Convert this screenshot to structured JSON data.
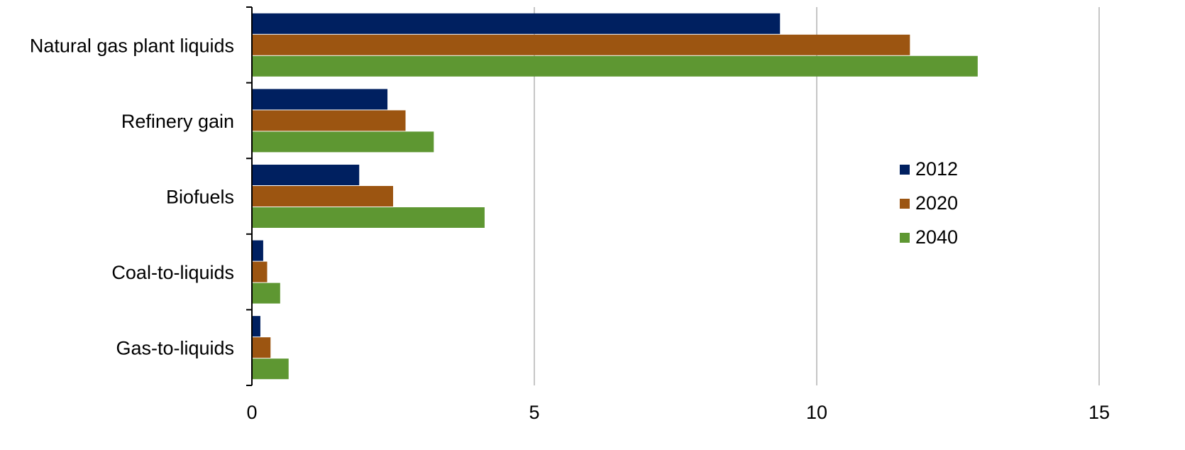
{
  "chart_data": {
    "type": "bar",
    "orientation": "horizontal",
    "categories": [
      "Natural gas plant liquids",
      "Refinery gain",
      "Biofuels",
      "Coal-to-liquids",
      "Gas-to-liquids"
    ],
    "series": [
      {
        "name": "2012",
        "color": "#002060",
        "values": [
          9.35,
          2.4,
          1.9,
          0.2,
          0.15
        ]
      },
      {
        "name": "2020",
        "color": "#9C5511",
        "values": [
          11.65,
          2.72,
          2.5,
          0.27,
          0.33
        ]
      },
      {
        "name": "2040",
        "color": "#5E9732",
        "values": [
          12.85,
          3.22,
          4.12,
          0.5,
          0.65
        ]
      }
    ],
    "xlim": [
      0,
      15
    ],
    "xticks": [
      "0",
      "5",
      "10",
      "15"
    ],
    "grid": "vertical",
    "legend_position": "right"
  }
}
